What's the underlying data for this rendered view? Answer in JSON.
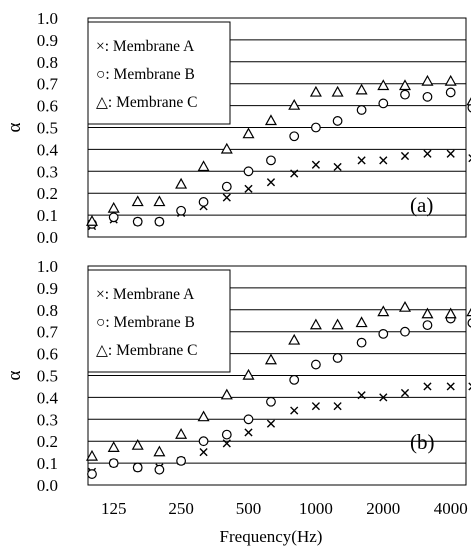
{
  "chart_data": [
    {
      "type": "scatter",
      "panel_label": "(a)",
      "ylabel": "α",
      "xlabel": "",
      "xscale": "log",
      "ylim": [
        0,
        1.0
      ],
      "yticks": [
        "0.0",
        "0.1",
        "0.2",
        "0.3",
        "0.4",
        "0.5",
        "0.6",
        "0.7",
        "0.8",
        "0.9",
        "1.0"
      ],
      "grid": "horizontal",
      "legend_position": "top-left",
      "x": [
        100,
        125,
        160,
        200,
        250,
        315,
        400,
        500,
        630,
        800,
        1000,
        1250,
        1600,
        2000,
        2500,
        3150,
        4000,
        5000
      ],
      "series": [
        {
          "name": "×: Membrane A",
          "marker": "cross",
          "values": [
            0.05,
            0.08,
            0.07,
            0.07,
            0.11,
            0.14,
            0.18,
            0.22,
            0.25,
            0.29,
            0.33,
            0.32,
            0.35,
            0.35,
            0.37,
            0.38,
            0.38,
            0.36
          ]
        },
        {
          "name": "○: Membrane B",
          "marker": "circle",
          "values": [
            0.06,
            0.09,
            0.07,
            0.07,
            0.12,
            0.16,
            0.23,
            0.3,
            0.35,
            0.46,
            0.5,
            0.53,
            0.58,
            0.61,
            0.65,
            0.64,
            0.66,
            0.59
          ]
        },
        {
          "name": "△: Membrane C",
          "marker": "triangle",
          "values": [
            0.07,
            0.13,
            0.16,
            0.16,
            0.24,
            0.32,
            0.4,
            0.47,
            0.53,
            0.6,
            0.66,
            0.66,
            0.67,
            0.69,
            0.69,
            0.71,
            0.71,
            0.62
          ]
        }
      ]
    },
    {
      "type": "scatter",
      "panel_label": "(b)",
      "ylabel": "α",
      "xlabel": "Frequency(Hz)",
      "xscale": "log",
      "ylim": [
        0,
        1.0
      ],
      "yticks": [
        "0.0",
        "0.1",
        "0.2",
        "0.3",
        "0.4",
        "0.5",
        "0.6",
        "0.7",
        "0.8",
        "0.9",
        "1.0"
      ],
      "xtick_labels": [
        "125",
        "250",
        "500",
        "1000",
        "2000",
        "4000"
      ],
      "grid": "horizontal",
      "legend_position": "top-left",
      "x": [
        100,
        125,
        160,
        200,
        250,
        315,
        400,
        500,
        630,
        800,
        1000,
        1250,
        1600,
        2000,
        2500,
        3150,
        4000,
        5000
      ],
      "series": [
        {
          "name": "×: Membrane A",
          "marker": "cross",
          "values": [
            0.06,
            0.1,
            0.08,
            0.08,
            0.11,
            0.15,
            0.19,
            0.24,
            0.28,
            0.34,
            0.36,
            0.36,
            0.41,
            0.4,
            0.42,
            0.45,
            0.45,
            0.45
          ]
        },
        {
          "name": "○: Membrane B",
          "marker": "circle",
          "values": [
            0.05,
            0.1,
            0.08,
            0.07,
            0.11,
            0.2,
            0.23,
            0.3,
            0.38,
            0.48,
            0.55,
            0.58,
            0.65,
            0.69,
            0.7,
            0.73,
            0.76,
            0.74
          ]
        },
        {
          "name": "△: Membrane C",
          "marker": "triangle",
          "values": [
            0.13,
            0.17,
            0.18,
            0.15,
            0.23,
            0.31,
            0.41,
            0.5,
            0.57,
            0.66,
            0.73,
            0.73,
            0.74,
            0.79,
            0.81,
            0.78,
            0.78,
            0.79
          ]
        }
      ]
    }
  ]
}
